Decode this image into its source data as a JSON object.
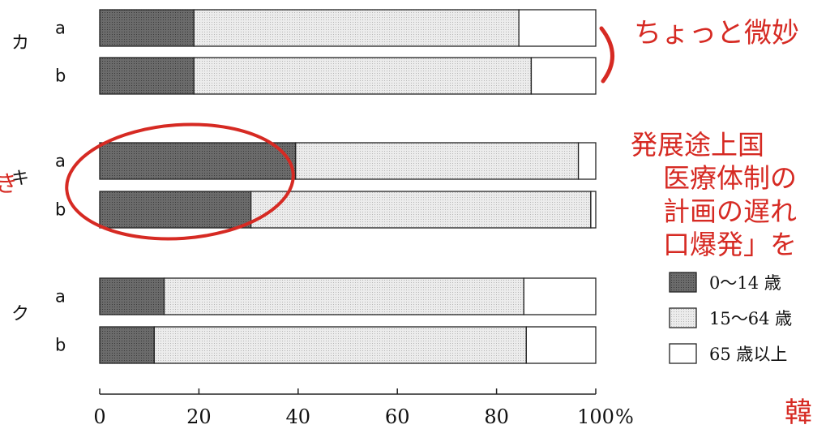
{
  "chart_data": {
    "type": "bar",
    "orientation": "horizontal",
    "stacked": true,
    "xlim": [
      0,
      100
    ],
    "x_ticks": [
      0,
      20,
      40,
      60,
      80,
      100
    ],
    "x_unit": "%",
    "groups": [
      {
        "name": "カ",
        "rows": [
          {
            "label": "a",
            "values": [
              19,
              65.5,
              15.5
            ]
          },
          {
            "label": "b",
            "values": [
              19,
              68,
              13
            ]
          }
        ]
      },
      {
        "name": "キ",
        "rows": [
          {
            "label": "a",
            "values": [
              39.5,
              57,
              3.5
            ]
          },
          {
            "label": "b",
            "values": [
              30.5,
              68.5,
              1
            ]
          }
        ]
      },
      {
        "name": "ク",
        "rows": [
          {
            "label": "a",
            "values": [
              13,
              72.5,
              14.5
            ]
          },
          {
            "label": "b",
            "values": [
              11,
              75,
              14
            ]
          }
        ]
      }
    ],
    "series": [
      {
        "name": "0～14 歳",
        "color": "#5f5f5f"
      },
      {
        "name": "15～64 歳",
        "color": "#e3e3e3"
      },
      {
        "name": "65 歳以上",
        "color": "#ffffff"
      }
    ],
    "legend": "right"
  },
  "annotations": {
    "bracket_note": "ちょっと微妙",
    "note_lines": [
      "発展途上国",
      "医療体制の",
      "計画の遅れ",
      "口爆発」を"
    ],
    "corner_text": "韓",
    "color": "#d62a23"
  }
}
